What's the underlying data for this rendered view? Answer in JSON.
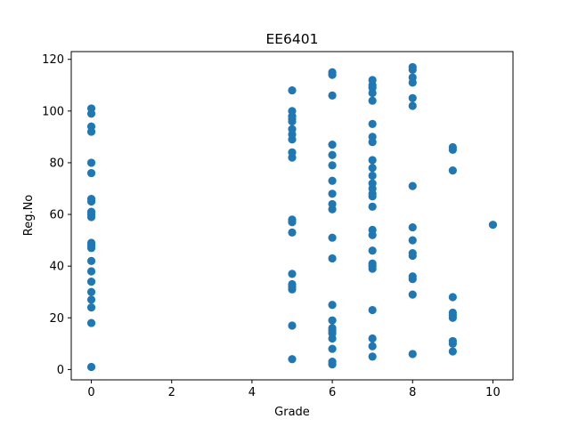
{
  "chart_data": {
    "type": "scatter",
    "title": "EE6401",
    "xlabel": "Grade",
    "ylabel": "Reg.No",
    "xlim": [
      -0.5,
      10.5
    ],
    "ylim": [
      -4,
      123
    ],
    "xticks": [
      0,
      2,
      4,
      6,
      8,
      10
    ],
    "yticks": [
      0,
      20,
      40,
      60,
      80,
      100,
      120
    ],
    "grid": false,
    "marker_color": "#1f77b4",
    "series": [
      {
        "points": [
          [
            0,
            1
          ],
          [
            0,
            18
          ],
          [
            0,
            24
          ],
          [
            0,
            27
          ],
          [
            0,
            30
          ],
          [
            0,
            34
          ],
          [
            0,
            38
          ],
          [
            0,
            42
          ],
          [
            0,
            47
          ],
          [
            0,
            48
          ],
          [
            0,
            49
          ],
          [
            0,
            59
          ],
          [
            0,
            60
          ],
          [
            0,
            61
          ],
          [
            0,
            65
          ],
          [
            0,
            66
          ],
          [
            0,
            76
          ],
          [
            0,
            80
          ],
          [
            0,
            92
          ],
          [
            0,
            94
          ],
          [
            0,
            99
          ],
          [
            0,
            101
          ],
          [
            5,
            4
          ],
          [
            5,
            17
          ],
          [
            5,
            31
          ],
          [
            5,
            32
          ],
          [
            5,
            33
          ],
          [
            5,
            37
          ],
          [
            5,
            53
          ],
          [
            5,
            57
          ],
          [
            5,
            58
          ],
          [
            5,
            82
          ],
          [
            5,
            84
          ],
          [
            5,
            89
          ],
          [
            5,
            91
          ],
          [
            5,
            93
          ],
          [
            5,
            96
          ],
          [
            5,
            97
          ],
          [
            5,
            98
          ],
          [
            5,
            100
          ],
          [
            5,
            108
          ],
          [
            6,
            2
          ],
          [
            6,
            3
          ],
          [
            6,
            8
          ],
          [
            6,
            12
          ],
          [
            6,
            14
          ],
          [
            6,
            15
          ],
          [
            6,
            16
          ],
          [
            6,
            19
          ],
          [
            6,
            25
          ],
          [
            6,
            43
          ],
          [
            6,
            51
          ],
          [
            6,
            62
          ],
          [
            6,
            64
          ],
          [
            6,
            68
          ],
          [
            6,
            73
          ],
          [
            6,
            79
          ],
          [
            6,
            83
          ],
          [
            6,
            87
          ],
          [
            6,
            106
          ],
          [
            6,
            114
          ],
          [
            6,
            115
          ],
          [
            7,
            5
          ],
          [
            7,
            9
          ],
          [
            7,
            12
          ],
          [
            7,
            23
          ],
          [
            7,
            39
          ],
          [
            7,
            40
          ],
          [
            7,
            41
          ],
          [
            7,
            46
          ],
          [
            7,
            52
          ],
          [
            7,
            54
          ],
          [
            7,
            63
          ],
          [
            7,
            67
          ],
          [
            7,
            68
          ],
          [
            7,
            70
          ],
          [
            7,
            72
          ],
          [
            7,
            75
          ],
          [
            7,
            78
          ],
          [
            7,
            81
          ],
          [
            7,
            88
          ],
          [
            7,
            90
          ],
          [
            7,
            95
          ],
          [
            7,
            104
          ],
          [
            7,
            107
          ],
          [
            7,
            109
          ],
          [
            7,
            110
          ],
          [
            7,
            112
          ],
          [
            8,
            6
          ],
          [
            8,
            29
          ],
          [
            8,
            35
          ],
          [
            8,
            36
          ],
          [
            8,
            44
          ],
          [
            8,
            45
          ],
          [
            8,
            50
          ],
          [
            8,
            55
          ],
          [
            8,
            71
          ],
          [
            8,
            102
          ],
          [
            8,
            105
          ],
          [
            8,
            111
          ],
          [
            8,
            113
          ],
          [
            8,
            116
          ],
          [
            8,
            117
          ],
          [
            9,
            7
          ],
          [
            9,
            10
          ],
          [
            9,
            11
          ],
          [
            9,
            20
          ],
          [
            9,
            21
          ],
          [
            9,
            22
          ],
          [
            9,
            28
          ],
          [
            9,
            77
          ],
          [
            9,
            85
          ],
          [
            9,
            86
          ],
          [
            10,
            56
          ]
        ]
      }
    ]
  }
}
